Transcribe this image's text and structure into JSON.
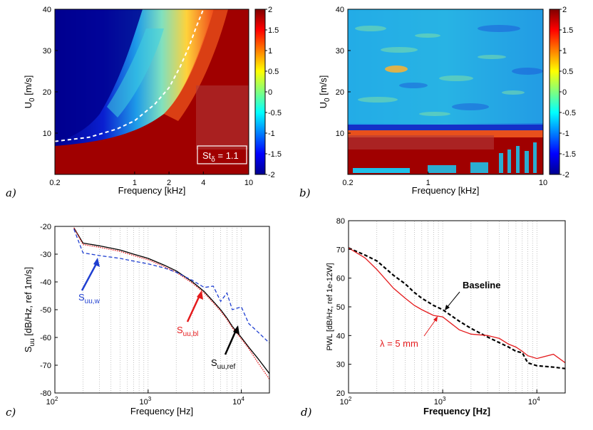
{
  "panels": {
    "a": {
      "letter": "a)",
      "xlabel": "Frequency [kHz]",
      "ylabel": "U",
      "ylabel_sub": "0",
      "ylabel_tail": " [m/s]",
      "annotation": "St",
      "annotation_sub": "δ",
      "annotation_tail": " = 1.1"
    },
    "b": {
      "letter": "b)",
      "xlabel": "Frequency [kHz]",
      "ylabel": "U",
      "ylabel_sub": "0",
      "ylabel_tail": " [m/s]"
    },
    "c": {
      "letter": "c)",
      "xlabel": "Frequency [Hz]",
      "ylabel": "S",
      "ylabel_sub": "uu",
      "ylabel_tail": " [dB/Hz, ref 1m/s]"
    },
    "d": {
      "letter": "d)",
      "xlabel": "Frequency [Hz]",
      "ylabel": "PWL [dB/Hz, ref 1e-12W]"
    }
  },
  "chart_data": [
    {
      "id": "a",
      "type": "heatmap",
      "xlabel": "Frequency [kHz]",
      "ylabel": "U0 [m/s]",
      "x_scale": "log",
      "xlim": [
        0.2,
        10
      ],
      "ylim": [
        0,
        40
      ],
      "x_ticks": [
        "0.2",
        "1",
        "2",
        "4",
        "10"
      ],
      "x_tick_values": [
        0.2,
        1,
        2,
        4,
        10
      ],
      "y_ticks": [
        "10",
        "20",
        "30",
        "40"
      ],
      "y_tick_values": [
        10,
        20,
        30,
        40
      ],
      "colorbar": {
        "min": -2,
        "max": 2,
        "ticks": [
          "2",
          "1.5",
          "1",
          "0.5",
          "0",
          "-0.5",
          "-1",
          "-1.5",
          "-2"
        ]
      },
      "overlay_curve": {
        "style": "white dashed",
        "x": [
          0.2,
          0.4,
          0.7,
          1.0,
          1.5,
          2.0,
          2.5,
          3.0,
          3.5,
          4.0
        ],
        "y": [
          8,
          9,
          11,
          13,
          17,
          21,
          26,
          31,
          36,
          40
        ]
      },
      "annotation": "Stδ = 1.1"
    },
    {
      "id": "b",
      "type": "heatmap",
      "xlabel": "Frequency [kHz]",
      "ylabel": "U0 [m/s]",
      "x_scale": "log",
      "xlim": [
        0.2,
        10
      ],
      "ylim": [
        0,
        40
      ],
      "x_ticks": [
        "0.2",
        "1",
        "10"
      ],
      "x_tick_values": [
        0.2,
        1,
        10
      ],
      "y_ticks": [
        "10",
        "20",
        "30",
        "40"
      ],
      "y_tick_values": [
        10,
        20,
        30,
        40
      ],
      "colorbar": {
        "min": -2,
        "max": 2,
        "ticks": [
          "2",
          "1.5",
          "1",
          "0.5",
          "0",
          "-0.5",
          "-1",
          "-1.5",
          "-2"
        ]
      }
    },
    {
      "id": "c",
      "type": "line",
      "xlabel": "Frequency [Hz]",
      "ylabel": "Suu [dB/Hz, ref 1m/s]",
      "x_scale": "log",
      "xlim": [
        100,
        20000
      ],
      "ylim": [
        -80,
        -20
      ],
      "grid": "x-minor",
      "x_ticks": [
        "10",
        "10",
        "10"
      ],
      "x_tick_exps": [
        "2",
        "3",
        "4"
      ],
      "x_tick_values": [
        100,
        1000,
        10000
      ],
      "y_ticks": [
        "-20",
        "-30",
        "-40",
        "-50",
        "-60",
        "-70",
        "-80"
      ],
      "y_tick_values": [
        -20,
        -30,
        -40,
        -50,
        -60,
        -70,
        -80
      ],
      "series": [
        {
          "name": "Suu,ref",
          "label_main": "S",
          "label_sub": "uu,ref",
          "color": "#000000",
          "style": "solid",
          "x": [
            160,
            200,
            300,
            500,
            700,
            1000,
            1500,
            2000,
            3000,
            4000,
            5000,
            6000,
            7000,
            8000,
            10000,
            12000,
            15000,
            20000
          ],
          "y": [
            -20.5,
            -26,
            -27,
            -28.5,
            -30,
            -31.5,
            -34,
            -36,
            -40,
            -43.5,
            -47,
            -50,
            -53,
            -56,
            -60,
            -63.5,
            -67.5,
            -73
          ]
        },
        {
          "name": "Suu,bl",
          "label_main": "S",
          "label_sub": "uu,bl",
          "color": "#e41a1c",
          "style": "dotted",
          "x": [
            160,
            200,
            300,
            500,
            700,
            1000,
            1500,
            2000,
            3000,
            4000,
            5000,
            6000,
            7000,
            8000,
            10000,
            12000,
            15000,
            20000
          ],
          "y": [
            -20.5,
            -26.5,
            -27.5,
            -29,
            -30.5,
            -32,
            -34.5,
            -36.5,
            -40.5,
            -44,
            -47.5,
            -50.5,
            -53.5,
            -56.5,
            -60.5,
            -64,
            -69,
            -75
          ]
        },
        {
          "name": "Suu,w",
          "label_main": "S",
          "label_sub": "uu,w",
          "color": "#1f3fd1",
          "style": "dashed",
          "x": [
            160,
            200,
            300,
            500,
            700,
            1000,
            1500,
            2000,
            3000,
            4000,
            5000,
            6000,
            7000,
            8000,
            10000,
            12000,
            15000,
            20000
          ],
          "y": [
            -21,
            -29.5,
            -30.5,
            -31.5,
            -32.5,
            -33.5,
            -35,
            -36.5,
            -39.5,
            -42,
            -41.5,
            -47,
            -44,
            -50,
            -49,
            -55,
            -58,
            -62
          ]
        }
      ]
    },
    {
      "id": "d",
      "type": "line",
      "xlabel": "Frequency [Hz]",
      "ylabel": "PWL [dB/Hz, ref 1e-12W]",
      "x_scale": "log",
      "xlim": [
        100,
        20000
      ],
      "ylim": [
        20,
        80
      ],
      "grid": "x-minor",
      "x_ticks": [
        "10",
        "10",
        "10"
      ],
      "x_tick_exps": [
        "2",
        "3",
        "4"
      ],
      "x_tick_values": [
        100,
        1000,
        10000
      ],
      "y_ticks": [
        "80",
        "70",
        "60",
        "50",
        "40",
        "30",
        "20"
      ],
      "y_tick_values": [
        80,
        70,
        60,
        50,
        40,
        30,
        20
      ],
      "series": [
        {
          "name": "Baseline",
          "color": "#000000",
          "style": "dashed",
          "x": [
            100,
            150,
            200,
            300,
            400,
            500,
            600,
            800,
            1000,
            1500,
            2000,
            3000,
            4000,
            5000,
            6000,
            7000,
            8000,
            10000,
            15000,
            20000
          ],
          "y": [
            70.5,
            68,
            66,
            61,
            58,
            55,
            53,
            50.5,
            49,
            45,
            42.5,
            39.5,
            37.5,
            36,
            34.5,
            34,
            30.5,
            29.5,
            29,
            28.5
          ]
        },
        {
          "name": "λ = 5 mm",
          "color": "#e41a1c",
          "style": "solid",
          "x": [
            100,
            150,
            200,
            300,
            400,
            500,
            600,
            800,
            1000,
            1500,
            2000,
            3000,
            4000,
            5000,
            6000,
            7000,
            8000,
            10000,
            15000,
            20000
          ],
          "y": [
            70.5,
            67,
            63,
            56.5,
            53,
            50.5,
            49,
            47,
            46.5,
            42,
            40.5,
            40,
            39,
            37,
            36,
            34.5,
            33,
            32,
            33.5,
            30.5
          ]
        }
      ]
    }
  ]
}
